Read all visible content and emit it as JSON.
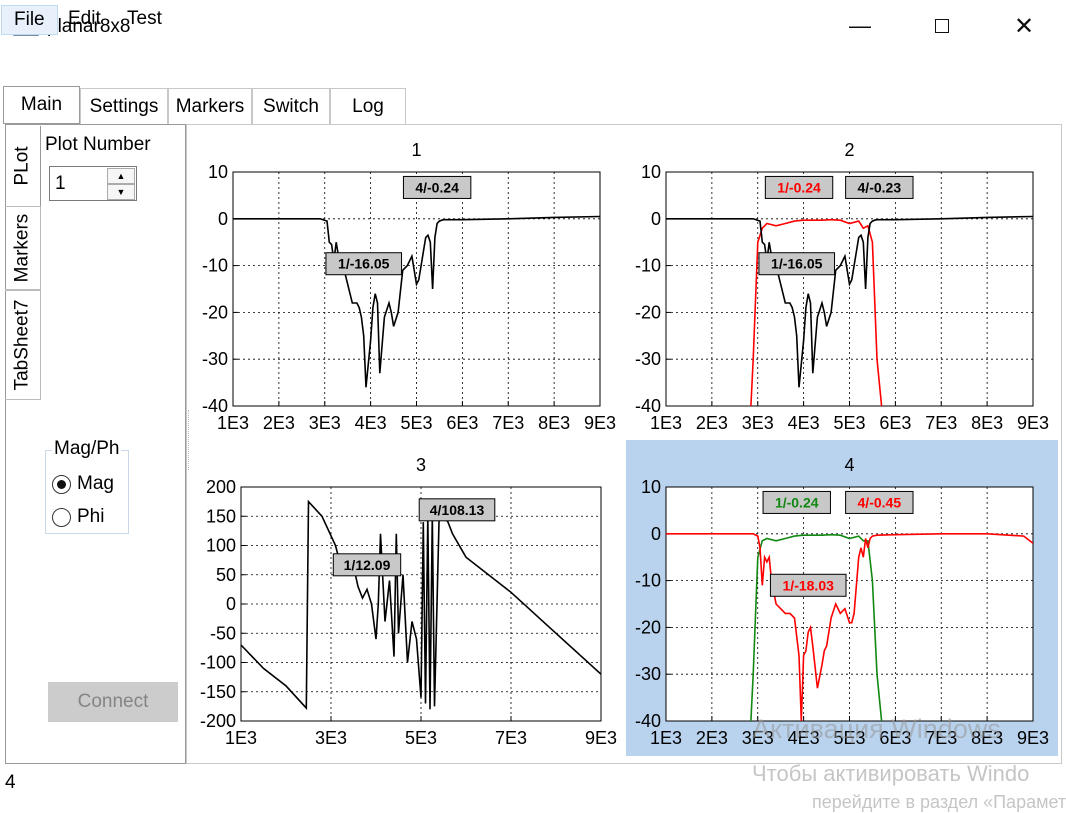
{
  "window": {
    "title": "planar8x8"
  },
  "menu": [
    {
      "label": "File"
    },
    {
      "label": "Edit"
    },
    {
      "label": "Test"
    }
  ],
  "tabs": [
    {
      "label": "Main"
    },
    {
      "label": "Settings"
    },
    {
      "label": "Markers"
    },
    {
      "label": "Switch"
    },
    {
      "label": "Log"
    }
  ],
  "side_tabs": [
    {
      "label": "PLot"
    },
    {
      "label": "Markers"
    },
    {
      "label": "TabSheet7"
    }
  ],
  "plot_number": {
    "label": "Plot Number",
    "value": "1"
  },
  "magph": {
    "title": "Mag/Ph",
    "options": [
      {
        "label": "Mag",
        "checked": true
      },
      {
        "label": "Phi",
        "checked": false
      }
    ]
  },
  "connect_label": "Connect",
  "status": "4",
  "watermark": {
    "line1": "Активация Windows",
    "line2": "Чтобы активировать Windo",
    "line3": "перейдите в раздел «Параметры»."
  },
  "colors": {
    "black": "#000000",
    "red": "#ff0000",
    "green": "#118811",
    "highlight": "#b9d3ee",
    "marker_bg": "#c8c8c8"
  },
  "chart_data": [
    {
      "type": "line",
      "title": "1",
      "xlim": [
        1000,
        9000
      ],
      "ylim": [
        -40,
        10
      ],
      "xticks": [
        "1E3",
        "2E3",
        "3E3",
        "4E3",
        "5E3",
        "6E3",
        "7E3",
        "8E3",
        "9E3"
      ],
      "yticks": [
        "10",
        "0",
        "-10",
        "-20",
        "-30",
        "-40"
      ],
      "grid": true,
      "series": [
        {
          "color": "#000000",
          "x": [
            1000,
            2900,
            3050,
            3100,
            3150,
            3200,
            3250,
            3300,
            3400,
            3500,
            3600,
            3700,
            3750,
            3800,
            3850,
            3900,
            4000,
            4050,
            4100,
            4150,
            4200,
            4300,
            4400,
            4450,
            4500,
            4600,
            4700,
            4800,
            4900,
            5000,
            5050,
            5100,
            5200,
            5250,
            5300,
            5350,
            5400,
            5450,
            5500,
            5550,
            5600,
            6000,
            7000,
            8000,
            9000
          ],
          "y": [
            0,
            0,
            -0.5,
            -5,
            -5.5,
            -9,
            -5,
            -8,
            -10,
            -14,
            -18,
            -18,
            -19,
            -21,
            -25,
            -36,
            -26,
            -19,
            -16,
            -18,
            -33,
            -21,
            -18,
            -20,
            -23,
            -20,
            -11,
            -10,
            -8,
            -14,
            -13,
            -10,
            -4,
            -3.5,
            -5,
            -15,
            -4,
            -1,
            -0.5,
            -0.3,
            -0.2,
            -0.2,
            0,
            0.3,
            0.5
          ]
        }
      ],
      "markers": [
        {
          "text": "4/-0.24",
          "x": 5450,
          "y": 6.7,
          "color": "#000000"
        },
        {
          "text": "1/-16.05",
          "x": 3850,
          "y": -9.6,
          "color": "#000000"
        }
      ]
    },
    {
      "type": "line",
      "title": "2",
      "xlim": [
        1000,
        9000
      ],
      "ylim": [
        -40,
        10
      ],
      "xticks": [
        "1E3",
        "2E3",
        "3E3",
        "4E3",
        "5E3",
        "6E3",
        "7E3",
        "8E3",
        "9E3"
      ],
      "yticks": [
        "10",
        "0",
        "-10",
        "-20",
        "-30",
        "-40"
      ],
      "grid": true,
      "series": [
        {
          "color": "#ff0000",
          "x": [
            2850,
            2900,
            3000,
            3100,
            3200,
            3400,
            3600,
            3800,
            4000,
            4200,
            4400,
            4600,
            4800,
            5000,
            5200,
            5300,
            5400,
            5500,
            5600,
            5700
          ],
          "y": [
            -40,
            -30,
            -5,
            -2,
            -1,
            -1.5,
            -1,
            -0.5,
            -0.3,
            -0.3,
            -0.3,
            -0.2,
            -0.3,
            -1,
            -0.5,
            -2,
            -1.5,
            -5,
            -30,
            -40
          ]
        },
        {
          "color": "#000000",
          "x": [
            1000,
            2900,
            3050,
            3100,
            3150,
            3200,
            3250,
            3300,
            3400,
            3500,
            3600,
            3700,
            3750,
            3800,
            3850,
            3900,
            4000,
            4050,
            4100,
            4150,
            4200,
            4300,
            4400,
            4450,
            4500,
            4600,
            4700,
            4800,
            4900,
            5000,
            5050,
            5100,
            5200,
            5250,
            5300,
            5350,
            5400,
            5450,
            5500,
            5550,
            5600,
            6000,
            7000,
            8000,
            9000
          ],
          "y": [
            0,
            0,
            -0.5,
            -5,
            -5.5,
            -9,
            -5,
            -8,
            -10,
            -14,
            -18,
            -18,
            -19,
            -21,
            -25,
            -36,
            -26,
            -19,
            -16,
            -18,
            -33,
            -21,
            -18,
            -20,
            -23,
            -20,
            -11,
            -10,
            -8,
            -14,
            -13,
            -10,
            -4,
            -3.5,
            -5,
            -15,
            -4,
            -1,
            -0.5,
            -0.3,
            -0.2,
            -0.2,
            0,
            0.3,
            0.5
          ]
        }
      ],
      "markers": [
        {
          "text": "1/-0.24",
          "x": 3900,
          "y": 6.7,
          "color": "#ff0000"
        },
        {
          "text": "4/-0.23",
          "x": 5650,
          "y": 6.7,
          "color": "#000000"
        },
        {
          "text": "1/-16.05",
          "x": 3850,
          "y": -9.6,
          "color": "#000000"
        }
      ]
    },
    {
      "type": "line",
      "title": "3",
      "xlim": [
        1000,
        9000
      ],
      "ylim": [
        -200,
        200
      ],
      "xticks": [
        "1E3",
        "3E3",
        "5E3",
        "7E3",
        "9E3"
      ],
      "yticks": [
        "200",
        "150",
        "100",
        "50",
        "0",
        "-50",
        "-100",
        "-150",
        "-200"
      ],
      "grid": true,
      "series": [
        {
          "color": "#000000",
          "x": [
            1000,
            1500,
            2000,
            2450,
            2500,
            2800,
            3100,
            3200,
            3300,
            3400,
            3500,
            3600,
            3700,
            3800,
            3900,
            4000,
            4050,
            4100,
            4200,
            4300,
            4400,
            4450,
            4500,
            4600,
            4700,
            4800,
            4900,
            5000,
            5050,
            5100,
            5150,
            5200,
            5250,
            5300,
            5400,
            5450,
            5500,
            5550,
            5600,
            5700,
            6000,
            7000,
            8000,
            9000
          ],
          "y": [
            -70,
            -110,
            -140,
            -178,
            175,
            150,
            100,
            70,
            80,
            60,
            65,
            30,
            10,
            25,
            0,
            -60,
            0,
            120,
            -30,
            40,
            -90,
            120,
            -50,
            50,
            -100,
            -30,
            -60,
            -160,
            140,
            -170,
            150,
            -180,
            150,
            -175,
            140,
            170,
            150,
            145,
            140,
            120,
            80,
            20,
            -50,
            -120
          ]
        }
      ],
      "markers": [
        {
          "text": "4/108.13",
          "x": 5800,
          "y": 161,
          "color": "#000000"
        },
        {
          "text": "1/12.09",
          "x": 3800,
          "y": 67,
          "color": "#000000"
        }
      ]
    },
    {
      "type": "line",
      "title": "4",
      "xlim": [
        1000,
        9000
      ],
      "ylim": [
        -40,
        10
      ],
      "xticks": [
        "1E3",
        "2E3",
        "3E3",
        "4E3",
        "5E3",
        "6E3",
        "7E3",
        "8E3",
        "9E3"
      ],
      "yticks": [
        "10",
        "0",
        "-10",
        "-20",
        "-30",
        "-40"
      ],
      "grid": true,
      "series": [
        {
          "color": "#118811",
          "x": [
            2850,
            2900,
            3000,
            3100,
            3200,
            3400,
            3600,
            3800,
            4000,
            4200,
            4400,
            4600,
            4800,
            5000,
            5200,
            5300,
            5400,
            5500,
            5600,
            5700
          ],
          "y": [
            -40,
            -30,
            -5,
            -1.5,
            -1,
            -1.5,
            -1,
            -0.5,
            -0.3,
            -0.3,
            -0.3,
            -0.2,
            -0.3,
            -1,
            -0.5,
            -1.5,
            -1.5,
            -10,
            -30,
            -40
          ]
        },
        {
          "color": "#ff0000",
          "x": [
            1000,
            2900,
            3000,
            3050,
            3100,
            3150,
            3200,
            3250,
            3300,
            3400,
            3600,
            3700,
            3800,
            3900,
            3950,
            4000,
            4050,
            4100,
            4150,
            4200,
            4300,
            4400,
            4450,
            4500,
            4600,
            4700,
            4800,
            4900,
            5000,
            5050,
            5100,
            5200,
            5250,
            5300,
            5350,
            5400,
            5450,
            5500,
            5600,
            6000,
            7000,
            8000,
            8800,
            9000
          ],
          "y": [
            0,
            0,
            -0.5,
            -3,
            -11,
            -5,
            -6,
            -5,
            -10,
            -15,
            -17,
            -17,
            -18,
            -26,
            -40,
            -26,
            -25,
            -21,
            -20,
            -24,
            -33,
            -28,
            -25,
            -24,
            -18,
            -15,
            -17,
            -16,
            -19,
            -19,
            -17,
            -5,
            -3,
            -5,
            -1,
            -3,
            -1,
            -0.5,
            -0.3,
            -0.2,
            0,
            0,
            -0.5,
            -2
          ]
        }
      ],
      "markers": [
        {
          "text": "1/-0.24",
          "x": 3850,
          "y": 6.7,
          "color": "#118811"
        },
        {
          "text": "4/-0.45",
          "x": 5650,
          "y": 6.7,
          "color": "#ff0000"
        },
        {
          "text": "1/-18.03",
          "x": 4100,
          "y": -11,
          "color": "#ff0000"
        }
      ]
    }
  ]
}
